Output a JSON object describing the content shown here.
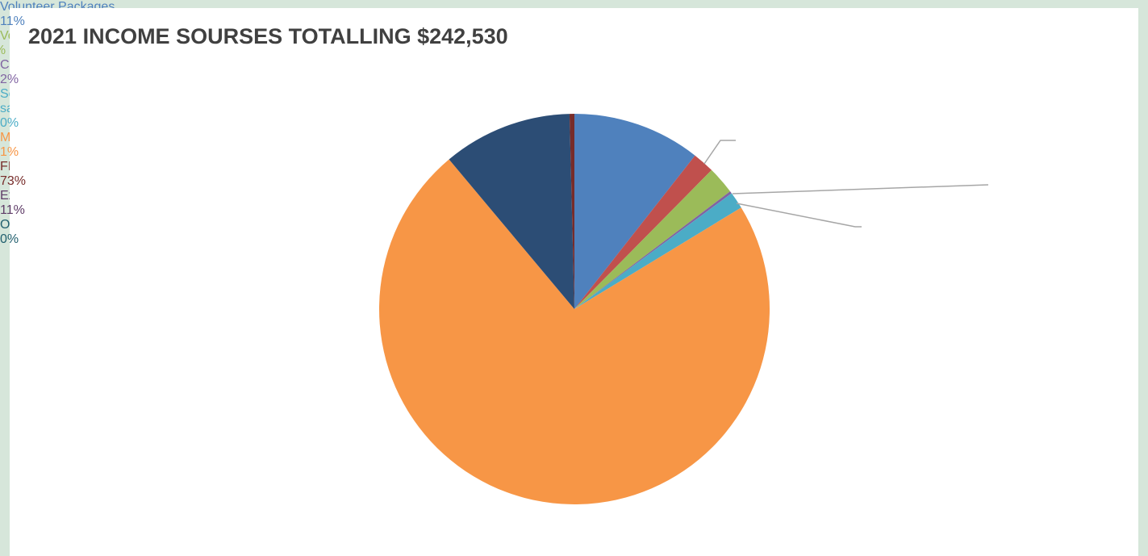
{
  "chart_data": {
    "type": "pie",
    "title": "2021 INCOME SOURSES TOTALLING $242,530",
    "categories": [
      "Volunteer Packages",
      "Volunteer donations",
      "Cafe profits",
      "Second hand clothes sales",
      "Merchandise Sales",
      "FIWY support",
      "External donations",
      "Other"
    ],
    "values": [
      10.6,
      1.8,
      2.3,
      0.2,
      1.4,
      72.6,
      10.7,
      0.4
    ],
    "value_labels": [
      "11%",
      "2%",
      "2%",
      "0%",
      "1%",
      "73%",
      "11%",
      "0%"
    ],
    "colors": [
      "#4f81bd",
      "#c0504d",
      "#9bbb59",
      "#8064a2",
      "#4bacc6",
      "#f79646",
      "#2c4d75",
      "#772c2a"
    ],
    "label_colors": [
      "#4f81bd",
      "#9bbb59",
      "#8064a2",
      "#4bacc6",
      "#f79646",
      "#772c2a",
      "#5f3c68",
      "#215f6e"
    ]
  }
}
